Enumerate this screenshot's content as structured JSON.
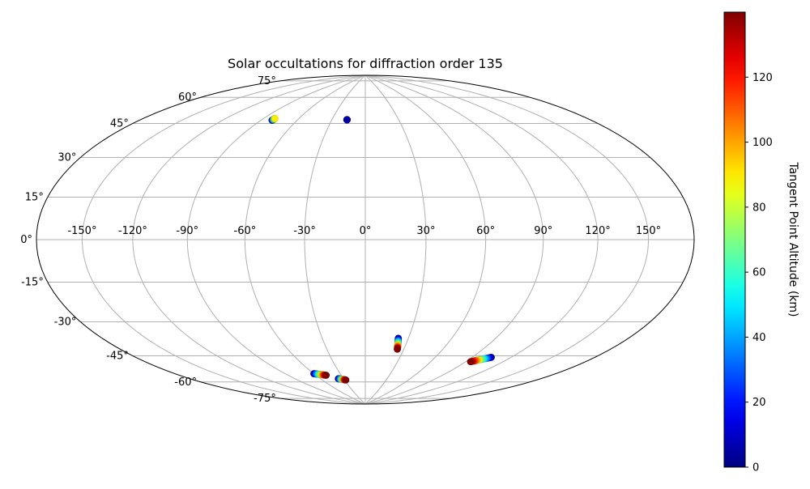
{
  "chart_data": {
    "type": "scatter",
    "projection": "hammer",
    "title": "Solar occultations for diffraction order 135",
    "grid": true,
    "lon_ticks": [
      -150,
      -120,
      -90,
      -60,
      -30,
      0,
      30,
      60,
      90,
      120,
      150
    ],
    "lon_tick_labels": [
      "-150°",
      "-120°",
      "-90°",
      "-60°",
      "-30°",
      "0°",
      "30°",
      "60°",
      "90°",
      "120°",
      "150°"
    ],
    "lat_ticks": [
      -75,
      -60,
      -45,
      -30,
      -15,
      0,
      15,
      30,
      45,
      60,
      75
    ],
    "lat_tick_labels": [
      "-75°",
      "-60°",
      "-45°",
      "-30°",
      "-15°",
      "0°",
      "15°",
      "30°",
      "45°",
      "60°",
      "75°"
    ],
    "colorbar": {
      "label": "Tangent Point Altitude (km)",
      "colormap": "jet",
      "range": [
        0,
        140
      ],
      "ticks": [
        0,
        20,
        40,
        60,
        80,
        100,
        120
      ],
      "tick_labels": [
        "0",
        "20",
        "40",
        "60",
        "80",
        "100",
        "120"
      ]
    },
    "tracks": [
      {
        "lon_start": -81,
        "lat_start": 59,
        "lon_end": -80.5,
        "lat_end": 60,
        "alt_start": 0,
        "alt_end": 90
      },
      {
        "lon_start": -16.5,
        "lat_start": 62,
        "lon_end": -16.5,
        "lat_end": 62,
        "alt_start": 0,
        "alt_end": 5
      },
      {
        "lon_start": 23,
        "lat_start": -50,
        "lon_end": 25,
        "lat_end": -56,
        "alt_start": 0,
        "alt_end": 140
      },
      {
        "lon_start": -60,
        "lat_start": -69,
        "lon_end": -48,
        "lat_end": -70.5,
        "alt_start": 0,
        "alt_end": 140
      },
      {
        "lon_start": -37,
        "lat_start": -73,
        "lon_end": -28,
        "lat_end": -74,
        "alt_start": 0,
        "alt_end": 140
      },
      {
        "lon_start": 105,
        "lat_start": -56,
        "lon_end": 94,
        "lat_end": -59.5,
        "alt_start": 0,
        "alt_end": 140
      }
    ]
  }
}
